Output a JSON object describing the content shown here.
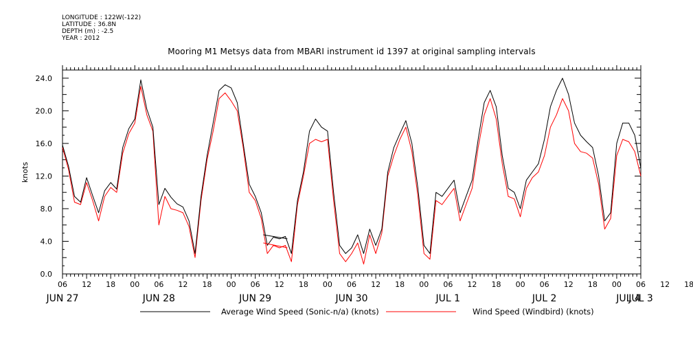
{
  "meta": {
    "longitude": "LONGITUDE : 122W(-122)",
    "latitude": "LATITUDE : 36.8N",
    "depth": "DEPTH (m) : -2.5",
    "year": "YEAR : 2012"
  },
  "chart_data": {
    "type": "line",
    "title": "Mooring M1 Metsys data from MBARI instrument id 1397 at original sampling intervals",
    "ylabel": "knots",
    "xlabel": "",
    "ylim": [
      0,
      25
    ],
    "yticks": [
      "0.0",
      "4.0",
      "8.0",
      "12.0",
      "16.0",
      "20.0",
      "24.0"
    ],
    "x_hour_range": [
      6,
      150
    ],
    "x_hour_labels": [
      "06",
      "12",
      "18",
      "00",
      "06",
      "12",
      "18",
      "00",
      "06",
      "12",
      "18",
      "00",
      "06",
      "12",
      "18",
      "00",
      "06",
      "12",
      "18",
      "00",
      "06",
      "12",
      "18",
      "00",
      "06",
      "12",
      "18",
      "00",
      "06"
    ],
    "x_date_labels": [
      "JUN 27",
      "JUN 28",
      "JUN 29",
      "JUN 30",
      "JUL  1",
      "JUL  2",
      "JUL  3",
      "JUL  4"
    ],
    "series": [
      {
        "name": "Average Wind Speed (Sonic-n/a) (knots)",
        "color": "#000000",
        "x": [
          6,
          7.5,
          9,
          10.5,
          12,
          13.5,
          15,
          16.5,
          18,
          19.5,
          21,
          22.5,
          24,
          25.5,
          27,
          28.5,
          30,
          31.5,
          33,
          34.5,
          36,
          37.5,
          39,
          40.5,
          42,
          43.5,
          45,
          46.5,
          48,
          49.5,
          51,
          52.5,
          54,
          55.5,
          57,
          58.5,
          60,
          61.5,
          63,
          64.5,
          66,
          67.5,
          69,
          70.5,
          72,
          73.5,
          75,
          76.5,
          78,
          79.5,
          81,
          82.5,
          84,
          85.5,
          87,
          88.5,
          90,
          91.5,
          93,
          94.5,
          96,
          97.5,
          99,
          100.5,
          102,
          103.5,
          105,
          106.5,
          108,
          109.5,
          111,
          112.5,
          114,
          115.5,
          117,
          118.5,
          120,
          121.5,
          123,
          124.5,
          126,
          127.5,
          129,
          130.5,
          132,
          133.5,
          135,
          136.5,
          138,
          139.5,
          141,
          142.5,
          144,
          145.5,
          147,
          148.5,
          150
        ],
        "y": [
          15.8,
          13.2,
          9.5,
          8.8,
          11.8,
          9.6,
          7.5,
          10.2,
          11.2,
          10.4,
          15.5,
          17.8,
          19,
          23.8,
          20.2,
          18,
          8.5,
          10.5,
          9.4,
          8.6,
          8.2,
          6.5,
          2.5,
          9.5,
          14.5,
          18.5,
          22.5,
          23.2,
          22.8,
          21,
          16,
          11,
          9.5,
          7.5,
          3.5,
          4.5,
          4.3,
          4.6,
          2.5,
          9,
          12.5,
          17.5,
          19,
          18,
          17.5,
          10,
          3.5,
          2.5,
          3.2,
          4.8,
          2.5,
          5.5,
          3.5,
          5.5,
          12.5,
          15.5,
          17.2,
          18.8,
          16,
          10.5,
          3.5,
          2.5,
          10,
          9.5,
          10.5,
          11.5,
          7.5,
          9.5,
          11.5,
          16.5,
          21,
          22.5,
          20.5,
          14.5,
          10.5,
          10,
          8,
          11.5,
          12.5,
          13.5,
          16.5,
          20.5,
          22.5,
          24,
          22,
          18.5,
          17,
          16.2,
          15.5,
          12,
          6.5,
          7.5,
          16,
          18.5,
          18.5,
          17,
          13
        ]
      },
      {
        "name": "Wind Speed (Windbird) (knots)",
        "color": "#ff0000",
        "x": [
          6,
          7.5,
          9,
          10.5,
          12,
          13.5,
          15,
          16.5,
          18,
          19.5,
          21,
          22.5,
          24,
          25.5,
          27,
          28.5,
          30,
          31.5,
          33,
          34.5,
          36,
          37.5,
          39,
          40.5,
          42,
          43.5,
          45,
          46.5,
          48,
          49.5,
          51,
          52.5,
          54,
          55.5,
          57,
          58.5,
          60,
          61.5,
          63,
          64.5,
          66,
          67.5,
          69,
          70.5,
          72,
          73.5,
          75,
          76.5,
          78,
          79.5,
          81,
          82.5,
          84,
          85.5,
          87,
          88.5,
          90,
          91.5,
          93,
          94.5,
          96,
          97.5,
          99,
          100.5,
          102,
          103.5,
          105,
          106.5,
          108,
          109.5,
          111,
          112.5,
          114,
          115.5,
          117,
          118.5,
          120,
          121.5,
          123,
          124.5,
          126,
          127.5,
          129,
          130.5,
          132,
          133.5,
          135,
          136.5,
          138,
          139.5,
          141,
          142.5,
          144,
          145.5,
          147,
          148.5,
          150
        ],
        "y": [
          15.5,
          12.8,
          8.8,
          8.5,
          11.2,
          9,
          6.5,
          9.5,
          10.6,
          10,
          14.8,
          17.2,
          18.5,
          23,
          19.5,
          17.5,
          6,
          9.5,
          8,
          7.8,
          7.5,
          5.8,
          2,
          9,
          14,
          17.5,
          21.5,
          22.2,
          21.2,
          20,
          15.5,
          10,
          9,
          6.8,
          2.5,
          3.5,
          3.2,
          3.5,
          1.5,
          8.5,
          12,
          16,
          16.5,
          16.2,
          16.5,
          9,
          2.5,
          1.5,
          2.5,
          3.8,
          1.2,
          4.8,
          2.5,
          5,
          12,
          14.5,
          16.5,
          18,
          15,
          9.5,
          2.5,
          1.8,
          9,
          8.5,
          9.5,
          10.5,
          6.5,
          8.5,
          10.5,
          15.5,
          19.5,
          21.5,
          19,
          13.5,
          9.5,
          9.2,
          7,
          10.5,
          11.8,
          12.5,
          14.5,
          18,
          19.5,
          21.5,
          20,
          16,
          15,
          14.8,
          14.2,
          11,
          5.5,
          6.8,
          14.5,
          16.5,
          16.2,
          15,
          12
        ]
      }
    ],
    "gap_segment": {
      "x_start": 56,
      "x_end": 62
    },
    "legend_position": "bottom"
  }
}
